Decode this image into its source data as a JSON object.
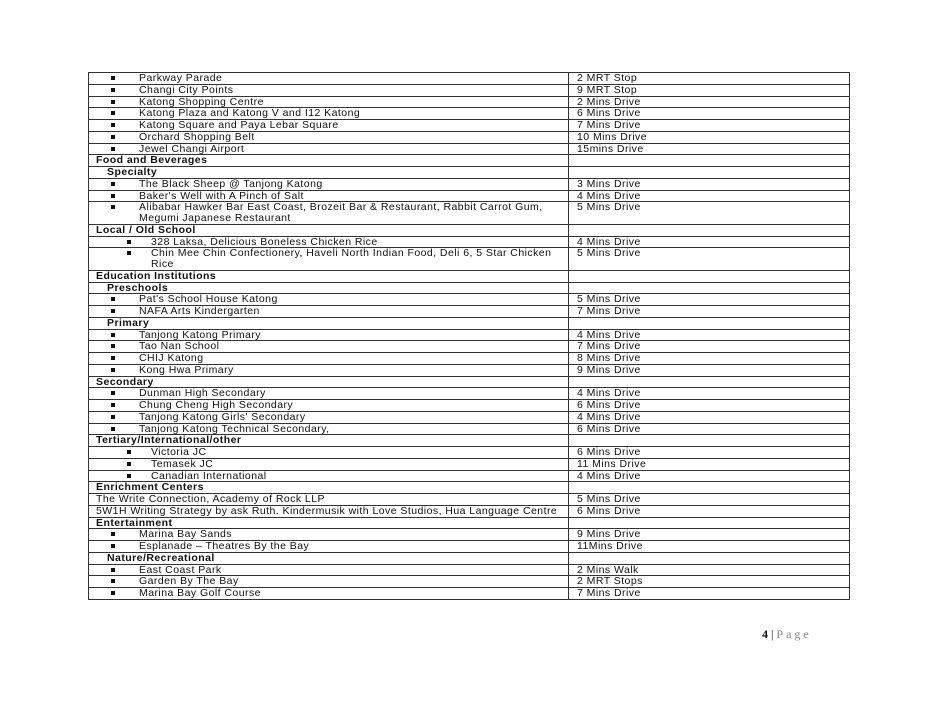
{
  "rows": [
    {
      "level": "bullet",
      "a": "Parkway Parade",
      "b": "2 MRT Stop"
    },
    {
      "level": "bullet",
      "a": "Changi City Points",
      "b": "9 MRT Stop"
    },
    {
      "level": "bullet",
      "a": "Katong Shopping Centre",
      "b": "2 Mins Drive"
    },
    {
      "level": "bullet",
      "a": "Katong Plaza and Katong V and I12 Katong",
      "b": "6 Mins Drive"
    },
    {
      "level": "bullet",
      "a": "Katong Square and Paya Lebar Square",
      "b": "7 Mins Drive"
    },
    {
      "level": "bullet",
      "a": "Orchard Shopping Belt",
      "b": "10 Mins Drive"
    },
    {
      "level": "bullet",
      "a": "Jewel Changi Airport",
      "b": "15mins Drive"
    },
    {
      "level": "section",
      "a": "Food and Beverages",
      "b": ""
    },
    {
      "level": "subsection",
      "a": "Specialty",
      "b": ""
    },
    {
      "level": "bullet",
      "a": "The Black Sheep @ Tanjong Katong",
      "b": "3 Mins Drive"
    },
    {
      "level": "bullet",
      "a": "Baker's Well with A Pinch of Salt",
      "b": "4 Mins Drive"
    },
    {
      "level": "bullet",
      "a": "Alibabar Hawker Bar East Coast, Brozeit Bar & Restaurant, Rabbit Carrot Gum, Megumi Japanese Restaurant",
      "b": "5 Mins Drive"
    },
    {
      "level": "section",
      "a": "Local / Old School",
      "b": ""
    },
    {
      "level": "bullet-deep",
      "a": "328 Laksa, Delicious Boneless Chicken Rice",
      "b": "4 Mins Drive"
    },
    {
      "level": "bullet-deep",
      "a": "Chin Mee Chin Confectionery, Haveli North Indian Food, Deli 6, 5 Star Chicken Rice",
      "b": "5 Mins Drive"
    },
    {
      "level": "section",
      "a": "Education Institutions",
      "b": ""
    },
    {
      "level": "subsection",
      "a": "Preschools",
      "b": ""
    },
    {
      "level": "bullet",
      "a": "Pat's School House Katong",
      "b": "5 Mins Drive"
    },
    {
      "level": "bullet",
      "a": "NAFA Arts Kindergarten",
      "b": "7 Mins Drive"
    },
    {
      "level": "subsection",
      "a": "Primary",
      "b": ""
    },
    {
      "level": "bullet",
      "a": "Tanjong Katong Primary",
      "b": "4 Mins Drive"
    },
    {
      "level": "bullet",
      "a": "Tao Nan School",
      "b": "7 Mins Drive"
    },
    {
      "level": "bullet",
      "a": "CHIJ Katong",
      "b": "8 Mins Drive"
    },
    {
      "level": "bullet",
      "a": "Kong Hwa Primary",
      "b": "9 Mins Drive"
    },
    {
      "level": "section",
      "a": "Secondary",
      "b": ""
    },
    {
      "level": "bullet",
      "a": "Dunman High Secondary",
      "b": "4 Mins Drive"
    },
    {
      "level": "bullet",
      "a": "Chung Cheng High Secondary",
      "b": "6 Mins Drive"
    },
    {
      "level": "bullet",
      "a": "Tanjong Katong Girls' Secondary",
      "b": "4 Mins Drive"
    },
    {
      "level": "bullet",
      "a": "Tanjong Katong Technical Secondary,",
      "b": "6 Mins Drive"
    },
    {
      "level": "section",
      "a": "Tertiary/International/other",
      "b": ""
    },
    {
      "level": "bullet-deep",
      "a": "Victoria JC",
      "b": "6 Mins Drive"
    },
    {
      "level": "bullet-deep",
      "a": "Temasek JC",
      "b": "11 Mins Drive"
    },
    {
      "level": "bullet-deep",
      "a": "Canadian International",
      "b": "4 Mins Drive"
    },
    {
      "level": "section",
      "a": "Enrichment Centers",
      "b": ""
    },
    {
      "level": "plain",
      "a": "The Write Connection, Academy of Rock LLP",
      "b": "5 Mins Drive"
    },
    {
      "level": "plain",
      "a": "5W1H Writing Strategy by ask Ruth. Kindermusik with Love Studios, Hua Language Centre",
      "b": "6 Mins Drive"
    },
    {
      "level": "section",
      "a": "Entertainment",
      "b": ""
    },
    {
      "level": "bullet",
      "a": "Marina Bay Sands",
      "b": "9 Mins Drive"
    },
    {
      "level": "bullet",
      "a": "Esplanade – Theatres By the Bay",
      "b": "11Mins Drive"
    },
    {
      "level": "subsection",
      "a": "Nature/Recreational",
      "b": ""
    },
    {
      "level": "bullet",
      "a": "East Coast Park",
      "b": "2 Mins Walk"
    },
    {
      "level": "bullet",
      "a": "Garden By The Bay",
      "b": "2 MRT Stops"
    },
    {
      "level": "bullet",
      "a": "Marina Bay Golf Course",
      "b": "7 Mins Drive"
    }
  ],
  "footer": {
    "page_number": "4",
    "separator": "|",
    "page_label": "Page"
  }
}
